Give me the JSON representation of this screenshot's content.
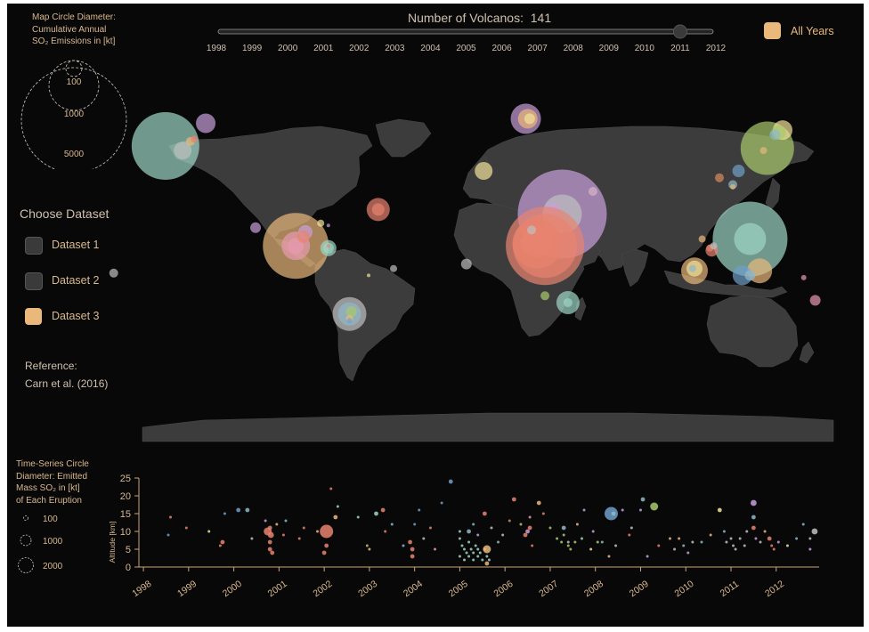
{
  "legend_map": {
    "title_lines": [
      "Map Circle Diameter:",
      "Cumulative Annual",
      "SO₂ Emissions in [kt]"
    ],
    "sizes": [
      "100",
      "1000",
      "5000"
    ]
  },
  "header": {
    "count_label": "Number of Volcanos:",
    "count_value": "141",
    "slider_value": 2011,
    "slider_years": [
      "1998",
      "1999",
      "2000",
      "2001",
      "2002",
      "2003",
      "2004",
      "2005",
      "2006",
      "2007",
      "2008",
      "2009",
      "2010",
      "2011",
      "2012"
    ],
    "all_years_label": "All Years",
    "accent": "#e9b87a"
  },
  "datasets": {
    "title": "Choose Dataset",
    "items": [
      {
        "label": "Dataset 1",
        "color": "#3a3a3a",
        "selected": false
      },
      {
        "label": "Dataset 2",
        "color": "#3a3a3a",
        "selected": false
      },
      {
        "label": "Dataset 3",
        "color": "#e9b87a",
        "selected": true
      }
    ]
  },
  "reference": {
    "title": "Reference:",
    "text": "Carn et al. (2016)"
  },
  "legend_ts": {
    "title_lines": [
      "Time-Series Circle",
      "Diameter: Emitted",
      "Mass SO₂ in [kt]",
      "of Each Eruption"
    ],
    "sizes": [
      "100",
      "1000",
      "2000"
    ]
  },
  "chart_data": {
    "type": "scatter",
    "ylabel": "Altitude [km]",
    "ylim": [
      0,
      25
    ],
    "yticks": [
      "0",
      "5",
      "10",
      "15",
      "20",
      "25"
    ],
    "xticks": [
      "1998",
      "1999",
      "2000",
      "2001",
      "2002",
      "2003",
      "2004",
      "2005",
      "2006",
      "2007",
      "2008",
      "2009",
      "2010",
      "2011",
      "2012"
    ],
    "xlim": [
      1997.9,
      2012.95
    ],
    "colors": [
      "#e8836f",
      "#e9b87a",
      "#8fb8c9",
      "#c9a0dc",
      "#a8c96b",
      "#9ed6c4",
      "#f2e39a",
      "#e89ab0",
      "#6f9fc9",
      "#bfbfbf",
      "#d78b5e"
    ],
    "points": [
      [
        1998.6,
        14,
        0,
        1
      ],
      [
        1998.55,
        9,
        8,
        1
      ],
      [
        1998.95,
        11,
        0,
        1
      ],
      [
        1999.45,
        10,
        6,
        1
      ],
      [
        1999.75,
        7,
        0,
        2
      ],
      [
        1999.7,
        6,
        0,
        1
      ],
      [
        1999.8,
        15,
        8,
        1
      ],
      [
        2000.1,
        16,
        8,
        2
      ],
      [
        2000.3,
        16,
        2,
        2
      ],
      [
        2000.4,
        8,
        9,
        1
      ],
      [
        2000.75,
        10,
        0,
        4
      ],
      [
        2000.82,
        9,
        0,
        3
      ],
      [
        2000.8,
        7,
        0,
        2
      ],
      [
        2000.8,
        5,
        0,
        2
      ],
      [
        2000.85,
        4,
        0,
        2
      ],
      [
        2000.8,
        11,
        0,
        2
      ],
      [
        2000.7,
        13,
        3,
        1
      ],
      [
        2000.95,
        12,
        1,
        1
      ],
      [
        2001.1,
        9,
        0,
        1
      ],
      [
        2001.15,
        13,
        2,
        1
      ],
      [
        2001.45,
        8,
        0,
        1
      ],
      [
        2001.55,
        11,
        0,
        1
      ],
      [
        2001.85,
        10,
        1,
        1
      ],
      [
        2002.05,
        10,
        0,
        5
      ],
      [
        2002.05,
        6,
        0,
        2
      ],
      [
        2002.0,
        4,
        0,
        2
      ],
      [
        2002.15,
        22,
        0,
        1
      ],
      [
        2002.3,
        17,
        5,
        1
      ],
      [
        2002.25,
        14,
        1,
        2
      ],
      [
        2002.75,
        14,
        5,
        1
      ],
      [
        2002.95,
        6,
        4,
        1
      ],
      [
        2003.0,
        5,
        1,
        1
      ],
      [
        2003.15,
        15,
        5,
        2
      ],
      [
        2003.3,
        16,
        0,
        2
      ],
      [
        2003.35,
        10,
        0,
        1
      ],
      [
        2003.5,
        12,
        2,
        1
      ],
      [
        2003.75,
        6,
        2,
        1
      ],
      [
        2003.9,
        7,
        0,
        2
      ],
      [
        2003.95,
        5,
        0,
        2
      ],
      [
        2003.95,
        3,
        0,
        2
      ],
      [
        2004.0,
        12,
        8,
        1
      ],
      [
        2004.1,
        16,
        8,
        1
      ],
      [
        2004.2,
        8,
        9,
        1
      ],
      [
        2004.35,
        11,
        0,
        1
      ],
      [
        2004.45,
        5,
        7,
        1
      ],
      [
        2004.6,
        18,
        8,
        1
      ],
      [
        2004.8,
        24,
        8,
        2
      ],
      [
        2005.0,
        10,
        5,
        1
      ],
      [
        2005.0,
        8,
        5,
        1
      ],
      [
        2005.05,
        6,
        5,
        1
      ],
      [
        2005.1,
        5,
        5,
        1
      ],
      [
        2005.15,
        4,
        5,
        1
      ],
      [
        2005.2,
        7,
        5,
        1
      ],
      [
        2005.25,
        5,
        5,
        1
      ],
      [
        2005.3,
        4,
        5,
        1
      ],
      [
        2005.35,
        6,
        5,
        1
      ],
      [
        2005.4,
        5,
        5,
        1
      ],
      [
        2005.45,
        4,
        5,
        1
      ],
      [
        2005.0,
        3,
        5,
        1
      ],
      [
        2005.1,
        2,
        5,
        1
      ],
      [
        2005.2,
        3,
        5,
        1
      ],
      [
        2005.3,
        2,
        5,
        1
      ],
      [
        2005.4,
        3,
        5,
        1
      ],
      [
        2005.5,
        2,
        5,
        1
      ],
      [
        2005.55,
        5,
        5,
        1
      ],
      [
        2005.6,
        3,
        5,
        1
      ],
      [
        2005.65,
        2,
        5,
        1
      ],
      [
        2005.2,
        10,
        2,
        2
      ],
      [
        2005.3,
        12,
        2,
        1
      ],
      [
        2005.55,
        15,
        0,
        2
      ],
      [
        2005.6,
        5,
        1,
        4
      ],
      [
        2005.6,
        1,
        1,
        2
      ],
      [
        2005.4,
        9,
        3,
        1
      ],
      [
        2005.7,
        11,
        9,
        1
      ],
      [
        2005.85,
        7,
        2,
        1
      ],
      [
        2006.1,
        13,
        10,
        1
      ],
      [
        2005.95,
        9,
        9,
        1
      ],
      [
        2006.2,
        19,
        0,
        2
      ],
      [
        2006.35,
        12,
        4,
        1
      ],
      [
        2006.45,
        9,
        0,
        2
      ],
      [
        2006.5,
        10,
        3,
        2
      ],
      [
        2006.55,
        11,
        0,
        2
      ],
      [
        2006.55,
        14,
        7,
        1
      ],
      [
        2006.6,
        6,
        0,
        1
      ],
      [
        2006.75,
        18,
        1,
        2
      ],
      [
        2006.85,
        15,
        0,
        1
      ],
      [
        2007.0,
        11,
        4,
        1
      ],
      [
        2007.15,
        8,
        4,
        1
      ],
      [
        2007.25,
        7,
        4,
        1
      ],
      [
        2007.3,
        9,
        4,
        1
      ],
      [
        2007.4,
        6,
        4,
        1
      ],
      [
        2007.45,
        5,
        4,
        1
      ],
      [
        2007.55,
        7,
        4,
        1
      ],
      [
        2007.3,
        11,
        2,
        2
      ],
      [
        2007.4,
        7,
        9,
        1
      ],
      [
        2007.6,
        12,
        1,
        1
      ],
      [
        2007.75,
        16,
        3,
        1
      ],
      [
        2007.7,
        8,
        5,
        1
      ],
      [
        2007.9,
        5,
        6,
        1
      ],
      [
        2007.95,
        10,
        3,
        1
      ],
      [
        2008.05,
        7,
        4,
        1
      ],
      [
        2008.15,
        7,
        2,
        1
      ],
      [
        2008.35,
        15,
        8,
        5
      ],
      [
        2008.4,
        15,
        2,
        2
      ],
      [
        2008.45,
        6,
        9,
        1
      ],
      [
        2008.3,
        3,
        1,
        1
      ],
      [
        2008.6,
        16,
        3,
        1
      ],
      [
        2008.75,
        9,
        0,
        1
      ],
      [
        2008.8,
        11,
        9,
        1
      ],
      [
        2009.05,
        19,
        2,
        2
      ],
      [
        2009.0,
        16,
        3,
        1
      ],
      [
        2009.15,
        3,
        3,
        1
      ],
      [
        2009.3,
        17,
        4,
        4
      ],
      [
        2009.4,
        6,
        0,
        1
      ],
      [
        2009.65,
        8,
        1,
        1
      ],
      [
        2009.75,
        5,
        9,
        1
      ],
      [
        2009.85,
        8,
        1,
        1
      ],
      [
        2009.95,
        6,
        2,
        1
      ],
      [
        2010.05,
        4,
        3,
        1
      ],
      [
        2010.15,
        7,
        9,
        1
      ],
      [
        2010.35,
        7,
        2,
        1
      ],
      [
        2010.55,
        9,
        1,
        1
      ],
      [
        2010.75,
        16,
        6,
        2
      ],
      [
        2010.85,
        10,
        2,
        1
      ],
      [
        2010.9,
        7,
        9,
        1
      ],
      [
        2011.0,
        8,
        9,
        1
      ],
      [
        2011.05,
        6,
        9,
        1
      ],
      [
        2011.1,
        5,
        9,
        1
      ],
      [
        2011.2,
        8,
        9,
        1
      ],
      [
        2011.3,
        6,
        9,
        1
      ],
      [
        2011.35,
        10,
        9,
        1
      ],
      [
        2011.5,
        18,
        3,
        3
      ],
      [
        2011.5,
        14,
        2,
        2
      ],
      [
        2011.5,
        11,
        0,
        2
      ],
      [
        2011.55,
        8,
        3,
        1
      ],
      [
        2011.65,
        7,
        9,
        1
      ],
      [
        2011.75,
        10,
        1,
        1
      ],
      [
        2011.85,
        8,
        0,
        2
      ],
      [
        2011.9,
        6,
        0,
        1
      ],
      [
        2011.95,
        5,
        0,
        1
      ],
      [
        2012.05,
        7,
        3,
        1
      ],
      [
        2012.25,
        6,
        6,
        1
      ],
      [
        2012.45,
        8,
        2,
        1
      ],
      [
        2012.6,
        12,
        2,
        1
      ],
      [
        2012.75,
        8,
        9,
        1
      ],
      [
        2012.85,
        10,
        9,
        3
      ],
      [
        2012.75,
        5,
        3,
        1
      ]
    ]
  },
  "map_data": {
    "bubbles": [
      [
        -168,
        40,
        5,
        38
      ],
      [
        -159,
        38,
        9,
        10
      ],
      [
        -155,
        42,
        1,
        5
      ],
      [
        -153,
        43,
        0,
        4
      ],
      [
        -147,
        50,
        3,
        11
      ],
      [
        20,
        52,
        3,
        17
      ],
      [
        21,
        52,
        1,
        11
      ],
      [
        22,
        52,
        6,
        6
      ],
      [
        -2,
        29,
        6,
        10
      ],
      [
        55,
        20,
        6,
        5
      ],
      [
        39,
        10,
        3,
        50
      ],
      [
        39,
        10,
        9,
        22
      ],
      [
        34,
        12,
        3,
        8
      ],
      [
        30,
        -4,
        0,
        44
      ],
      [
        30,
        -4,
        0,
        36
      ],
      [
        26,
        -3,
        0,
        28
      ],
      [
        26,
        -2,
        0,
        18
      ],
      [
        22,
        -3,
        0,
        11
      ],
      [
        23,
        3,
        9,
        5
      ],
      [
        30,
        -26,
        4,
        5
      ],
      [
        -11,
        -12,
        9,
        6
      ],
      [
        42,
        -29,
        5,
        13
      ],
      [
        42,
        -29,
        5,
        5
      ],
      [
        -49,
        -14,
        9,
        4
      ],
      [
        146,
        39,
        4,
        30
      ],
      [
        154,
        47,
        6,
        11
      ],
      [
        152,
        46,
        4,
        8
      ],
      [
        150,
        45,
        2,
        6
      ],
      [
        144,
        38,
        1,
        4
      ],
      [
        131,
        29,
        8,
        7
      ],
      [
        128,
        23,
        2,
        5
      ],
      [
        128,
        22,
        1,
        3
      ],
      [
        121,
        26,
        10,
        5
      ],
      [
        137,
        -1,
        5,
        42
      ],
      [
        137,
        -1,
        5,
        18
      ],
      [
        142,
        -15,
        1,
        14
      ],
      [
        133,
        -17,
        8,
        11
      ],
      [
        137,
        -17,
        2,
        6
      ],
      [
        108,
        -15,
        1,
        15
      ],
      [
        108,
        -14,
        6,
        9
      ],
      [
        107,
        -14,
        2,
        4
      ],
      [
        117,
        -6,
        0,
        7
      ],
      [
        116,
        -5,
        0,
        4
      ],
      [
        118,
        -4,
        9,
        4
      ],
      [
        112,
        -1,
        1,
        4
      ],
      [
        171,
        -28,
        7,
        6
      ],
      [
        165,
        -18,
        7,
        3
      ],
      [
        -100,
        -4,
        1,
        37
      ],
      [
        -100,
        -4,
        7,
        16
      ],
      [
        -100,
        -4,
        7,
        9
      ],
      [
        -95,
        2,
        3,
        8
      ],
      [
        -96,
        0,
        0,
        7
      ],
      [
        -87,
        6,
        6,
        4
      ],
      [
        -83,
        5,
        3,
        2
      ],
      [
        -83,
        -5,
        5,
        9
      ],
      [
        -83,
        -5,
        5,
        6
      ],
      [
        -83,
        -4,
        0,
        2
      ],
      [
        -57,
        12,
        0,
        13
      ],
      [
        -57,
        12,
        0,
        7
      ],
      [
        -121,
        4,
        3,
        6
      ],
      [
        -72,
        -34,
        9,
        19
      ],
      [
        -72,
        -34,
        2,
        13
      ],
      [
        -71,
        -33,
        4,
        6
      ],
      [
        -72,
        -36,
        1,
        4
      ],
      [
        -72,
        -37,
        8,
        3
      ],
      [
        -62,
        -17,
        6,
        2
      ],
      [
        -195,
        -16,
        9,
        5
      ]
    ]
  }
}
